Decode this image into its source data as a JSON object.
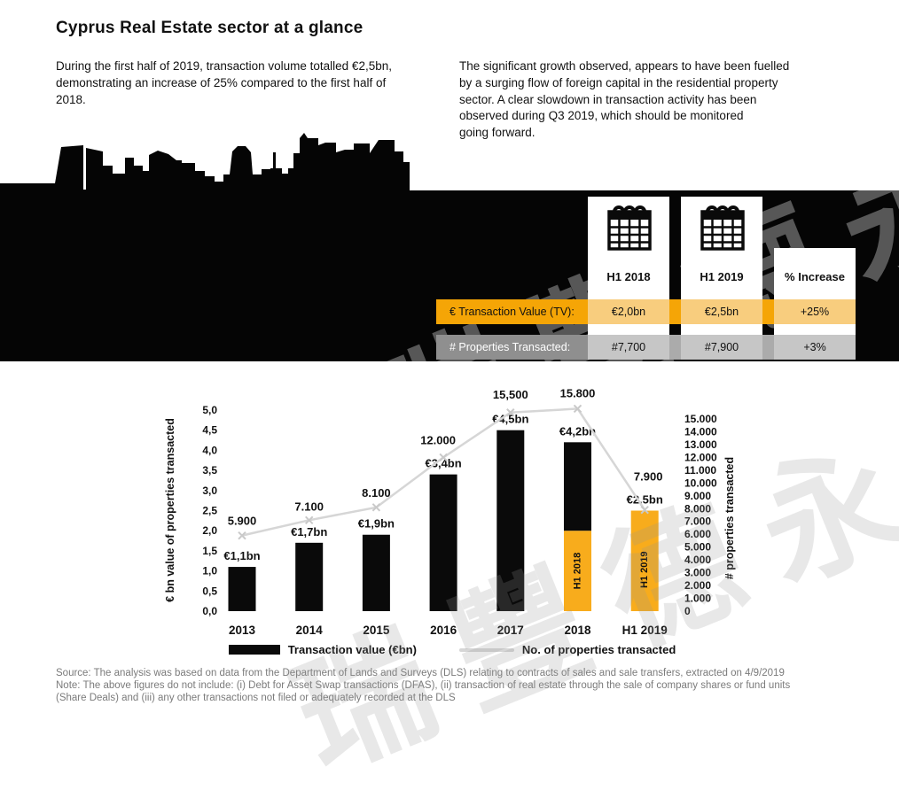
{
  "page": {
    "title": "Cyprus Real Estate sector at a glance"
  },
  "intro": {
    "left": "During the first half of 2019, transaction volume totalled €2,5bn,\ndemonstrating an increase of 25% compared to the first half of\n2018.",
    "right": "The significant growth observed, appears to have been fuelled\nby a surging flow of foreign capital in the residential property\nsector. A clear slowdown in transaction activity has been\nobserved during Q3 2019, which should be monitored\ngoing forward."
  },
  "watermark": {
    "text": "瑞豐德永"
  },
  "summary_table": {
    "columns": [
      "H1 2018",
      "H1 2019",
      "% Increase"
    ],
    "rows": [
      {
        "label": "€ Transaction Value (TV):",
        "values": [
          "€2,0bn",
          "€2,5bn",
          "+25%"
        ]
      },
      {
        "label": "# Properties Transacted:",
        "values": [
          "#7,700",
          "#7,900",
          "+3%"
        ]
      }
    ],
    "colors": {
      "amber": "#F5A506",
      "amber_light": "#F8CD7E",
      "gray_label": "#8F8F8F",
      "gray_gap": "#ABABAB",
      "gray_light": "#C6C6C6"
    }
  },
  "chart_data": {
    "type": "bar",
    "subtype": "combo bar+line, dual axis",
    "categories": [
      "2013",
      "2014",
      "2015",
      "2016",
      "2017",
      "2018",
      "H1 2019"
    ],
    "series": [
      {
        "name": "Transaction value (€bn)",
        "type": "bar",
        "values": [
          1.1,
          1.7,
          1.9,
          3.4,
          4.5,
          4.2,
          2.5
        ],
        "labels": [
          "€1,1bn",
          "€1,7bn",
          "€1,9bn",
          "€3,4bn",
          "€4,5bn",
          "€4,2bn",
          "€2,5bn"
        ]
      },
      {
        "name": "No. of properties transacted",
        "type": "line",
        "values": [
          5900,
          7100,
          8100,
          12000,
          15500,
          15800,
          7900
        ],
        "labels": [
          "5.900",
          "7.100",
          "8.100",
          "12.000",
          "15,500",
          "15.800",
          "7.900"
        ]
      }
    ],
    "stacked_2018": {
      "h1_value": 2.0,
      "h1_label": "H1 2018"
    },
    "h1_2019_bar_label": "H1 2019",
    "left_axis": {
      "title": "€ bn value of properties transacted",
      "min": 0,
      "max": 5,
      "step": 0.5,
      "tick_labels": [
        "0,0",
        "0,5",
        "1,0",
        "1,5",
        "2,0",
        "2,5",
        "3,0",
        "3,5",
        "4,0",
        "4,5",
        "5,0"
      ]
    },
    "right_axis": {
      "title": "# properties transacted",
      "min": 0,
      "max": 15000,
      "step": 1000,
      "tick_labels": [
        "0",
        "1.000",
        "2.000",
        "3.000",
        "4.000",
        "5.000",
        "6.000",
        "7.000",
        "8.000",
        "9.000",
        "10.000",
        "11.000",
        "12.000",
        "13.000",
        "14.000",
        "15.000"
      ]
    },
    "colors": {
      "bar": "#0a0a0a",
      "bar_h1": "#F8AC1C",
      "line": "#D6D6D6",
      "marker": "#C9C9C9"
    },
    "legend_position": "bottom",
    "grid": false
  },
  "footer": {
    "lines": [
      "Source: The analysis was based on data from the Department of Lands and Surveys (DLS) relating to contracts of sales and sale transfers, extracted on 4/9/2019",
      "Note: The above figures do not include: (i) Debt for Asset Swap transactions (DFAS), (ii) transaction of real estate through the sale of company shares or fund units",
      "(Share Deals) and (iii) any other transactions not filed or adequately recorded at the DLS"
    ]
  }
}
